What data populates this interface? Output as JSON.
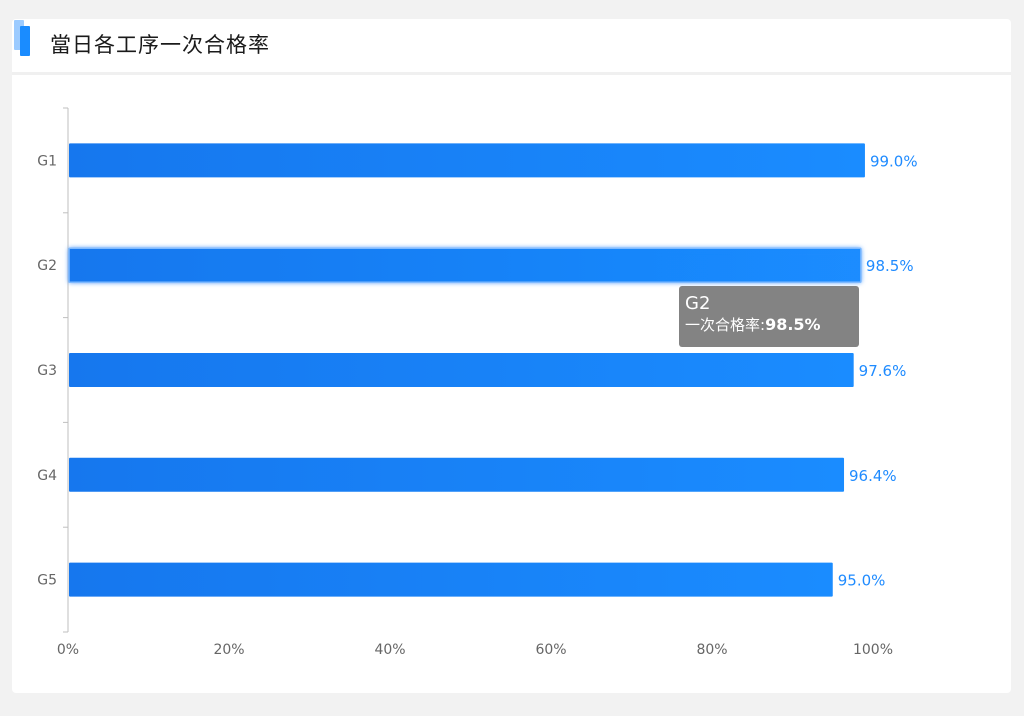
{
  "header": {
    "title": "當日各工序一次合格率"
  },
  "colors": {
    "bar": "#1a8cff",
    "bar_dark": "#1677ee",
    "label": "#1f8bff",
    "axis_text": "#666666",
    "axis_line": "#bfbfbf"
  },
  "chart_data": {
    "type": "bar",
    "orientation": "horizontal",
    "categories": [
      "G1",
      "G2",
      "G3",
      "G4",
      "G5"
    ],
    "series": [
      {
        "name": "一次合格率",
        "values": [
          99.0,
          98.5,
          97.6,
          96.4,
          95.0
        ]
      }
    ],
    "value_labels": [
      "99.0%",
      "98.5%",
      "97.6%",
      "96.4%",
      "95.0%"
    ],
    "xlim": [
      0,
      100
    ],
    "x_ticks": [
      "0%",
      "20%",
      "40%",
      "60%",
      "80%",
      "100%"
    ],
    "grid": false,
    "highlighted_category": "G2"
  },
  "tooltip": {
    "title": "G2",
    "series_label": "一次合格率:",
    "value": "98.5%"
  }
}
